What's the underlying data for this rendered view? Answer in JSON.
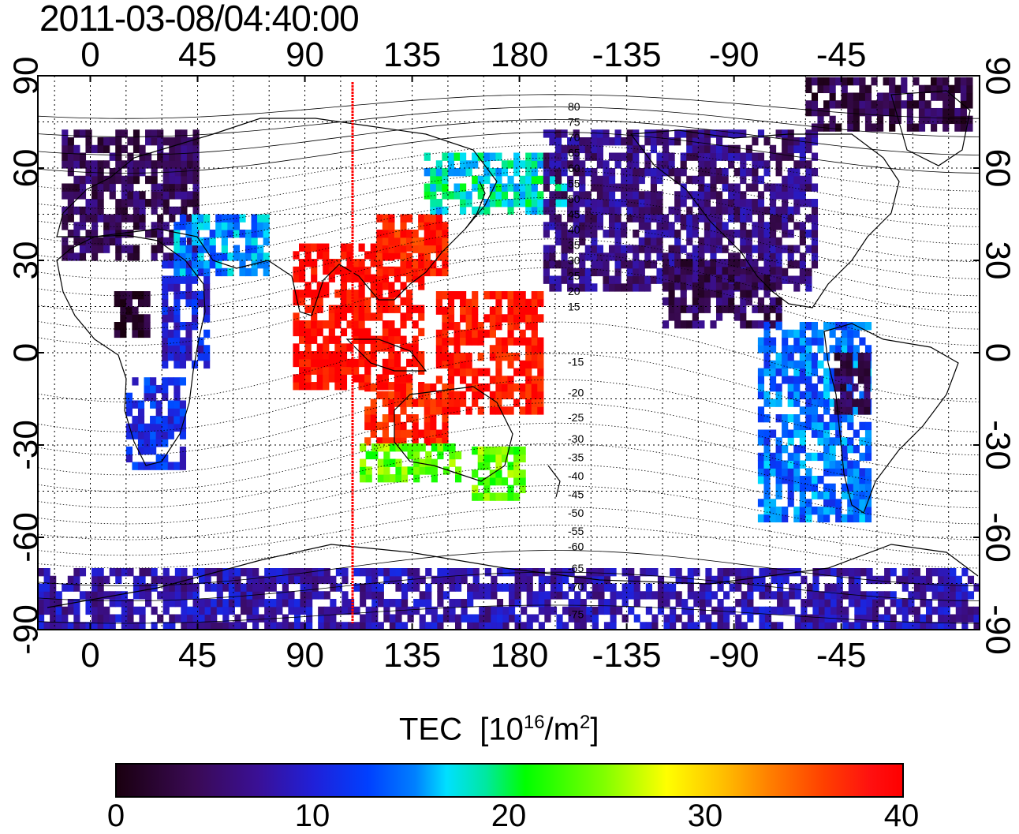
{
  "title": "2011-03-08/04:40:00",
  "chart_data": {
    "type": "heatmap",
    "title": "2011-03-08/04:40:00",
    "projection": "equirectangular, centered near 110E",
    "x_axis_top_labels": [
      "0",
      "45",
      "90",
      "135",
      "180",
      "-135",
      "-90",
      "-45"
    ],
    "x_axis_bottom_labels": [
      "0",
      "45",
      "90",
      "135",
      "180",
      "-135",
      "-90",
      "-45"
    ],
    "x_axis_values": [
      0,
      45,
      90,
      135,
      180,
      225,
      270,
      315
    ],
    "y_axis_labels": [
      "90",
      "60",
      "30",
      "0",
      "-30",
      "-60",
      "-90"
    ],
    "y_axis_values": [
      90,
      60,
      30,
      0,
      -30,
      -60,
      -90
    ],
    "xlim": [
      -22,
      373
    ],
    "ylim": [
      -90,
      90
    ],
    "grid": true,
    "meridian_marker_lon": 110,
    "magnetic_latitude_labels": [
      {
        "text": "80",
        "lat": 80
      },
      {
        "text": "75",
        "lat": 75
      },
      {
        "text": "70",
        "lat": 70
      },
      {
        "text": "65",
        "lat": 65
      },
      {
        "text": "60",
        "lat": 60
      },
      {
        "text": "55",
        "lat": 55
      },
      {
        "text": "50",
        "lat": 50
      },
      {
        "text": "45",
        "lat": 45
      },
      {
        "text": "40",
        "lat": 40
      },
      {
        "text": "35",
        "lat": 35
      },
      {
        "text": "30",
        "lat": 30
      },
      {
        "text": "25",
        "lat": 25
      },
      {
        "text": "20",
        "lat": 20
      },
      {
        "text": "15",
        "lat": 15
      },
      {
        "text": "-15",
        "lat": -3
      },
      {
        "text": "-20",
        "lat": -13
      },
      {
        "text": "-25",
        "lat": -21
      },
      {
        "text": "-30",
        "lat": -28
      },
      {
        "text": "-35",
        "lat": -34
      },
      {
        "text": "-40",
        "lat": -40
      },
      {
        "text": "-45",
        "lat": -46
      },
      {
        "text": "-50",
        "lat": -52
      },
      {
        "text": "-55",
        "lat": -58
      },
      {
        "text": "-60",
        "lat": -63
      },
      {
        "text": "-65",
        "lat": -70
      },
      {
        "text": "-70",
        "lat": -76
      },
      {
        "text": "-75",
        "lat": -85
      }
    ],
    "colorbar": {
      "label": "TEC",
      "unit_base": "[10",
      "unit_exp": "16",
      "unit_mid": "/m",
      "unit_exp2": "2",
      "unit_end": "]",
      "range": [
        0,
        40
      ],
      "tick_labels": [
        "0",
        "10",
        "20",
        "30",
        "40"
      ],
      "tick_values": [
        0,
        10,
        20,
        30,
        40
      ]
    },
    "tec_regions": [
      {
        "name": "europe-north-asia",
        "lon": [
          -12,
          45
        ],
        "lat": [
          30,
          72
        ],
        "tec": 4
      },
      {
        "name": "northern-africa",
        "lon": [
          10,
          25
        ],
        "lat": [
          5,
          18
        ],
        "tec": 1
      },
      {
        "name": "east-africa",
        "lon": [
          30,
          48
        ],
        "lat": [
          -5,
          30
        ],
        "tec": 10
      },
      {
        "name": "southern-africa",
        "lon": [
          15,
          40
        ],
        "lat": [
          -38,
          -10
        ],
        "tec": 11
      },
      {
        "name": "middle-east-west-asia",
        "lon": [
          35,
          75
        ],
        "lat": [
          25,
          45
        ],
        "tec": 15
      },
      {
        "name": "south-east-asia",
        "lon": [
          85,
          140
        ],
        "lat": [
          -12,
          35
        ],
        "tec": 40
      },
      {
        "name": "japan-korea",
        "lon": [
          120,
          150
        ],
        "lat": [
          25,
          45
        ],
        "tec": 38
      },
      {
        "name": "west-pacific-scatter",
        "lon": [
          145,
          190
        ],
        "lat": [
          -20,
          20
        ],
        "tec": 39
      },
      {
        "name": "australia-north",
        "lon": [
          115,
          150
        ],
        "lat": [
          -30,
          -12
        ],
        "tec": 38
      },
      {
        "name": "australia-south",
        "lon": [
          113,
          155
        ],
        "lat": [
          -42,
          -30
        ],
        "tec": 24
      },
      {
        "name": "new-zealand",
        "lon": [
          160,
          182
        ],
        "lat": [
          -48,
          -32
        ],
        "tec": 24
      },
      {
        "name": "north-pacific-scatter",
        "lon": [
          140,
          200
        ],
        "lat": [
          45,
          65
        ],
        "tec": 18
      },
      {
        "name": "north-america",
        "lon": [
          -170,
          -55
        ],
        "lat": [
          20,
          72
        ],
        "tec": 6
      },
      {
        "name": "central-america",
        "lon": [
          -120,
          -70
        ],
        "lat": [
          8,
          30
        ],
        "tec": 4
      },
      {
        "name": "south-america",
        "lon": [
          -80,
          -34
        ],
        "lat": [
          -55,
          8
        ],
        "tec": 14
      },
      {
        "name": "brazil-east",
        "lon": [
          -48,
          -34
        ],
        "lat": [
          -20,
          0
        ],
        "tec": 4
      },
      {
        "name": "antarctica",
        "lon": [
          -22,
          373
        ],
        "lat": [
          -90,
          -72
        ],
        "tec": 8
      },
      {
        "name": "greenland-arctic",
        "lon": [
          -60,
          10
        ],
        "lat": [
          72,
          88
        ],
        "tec": 3
      }
    ]
  }
}
